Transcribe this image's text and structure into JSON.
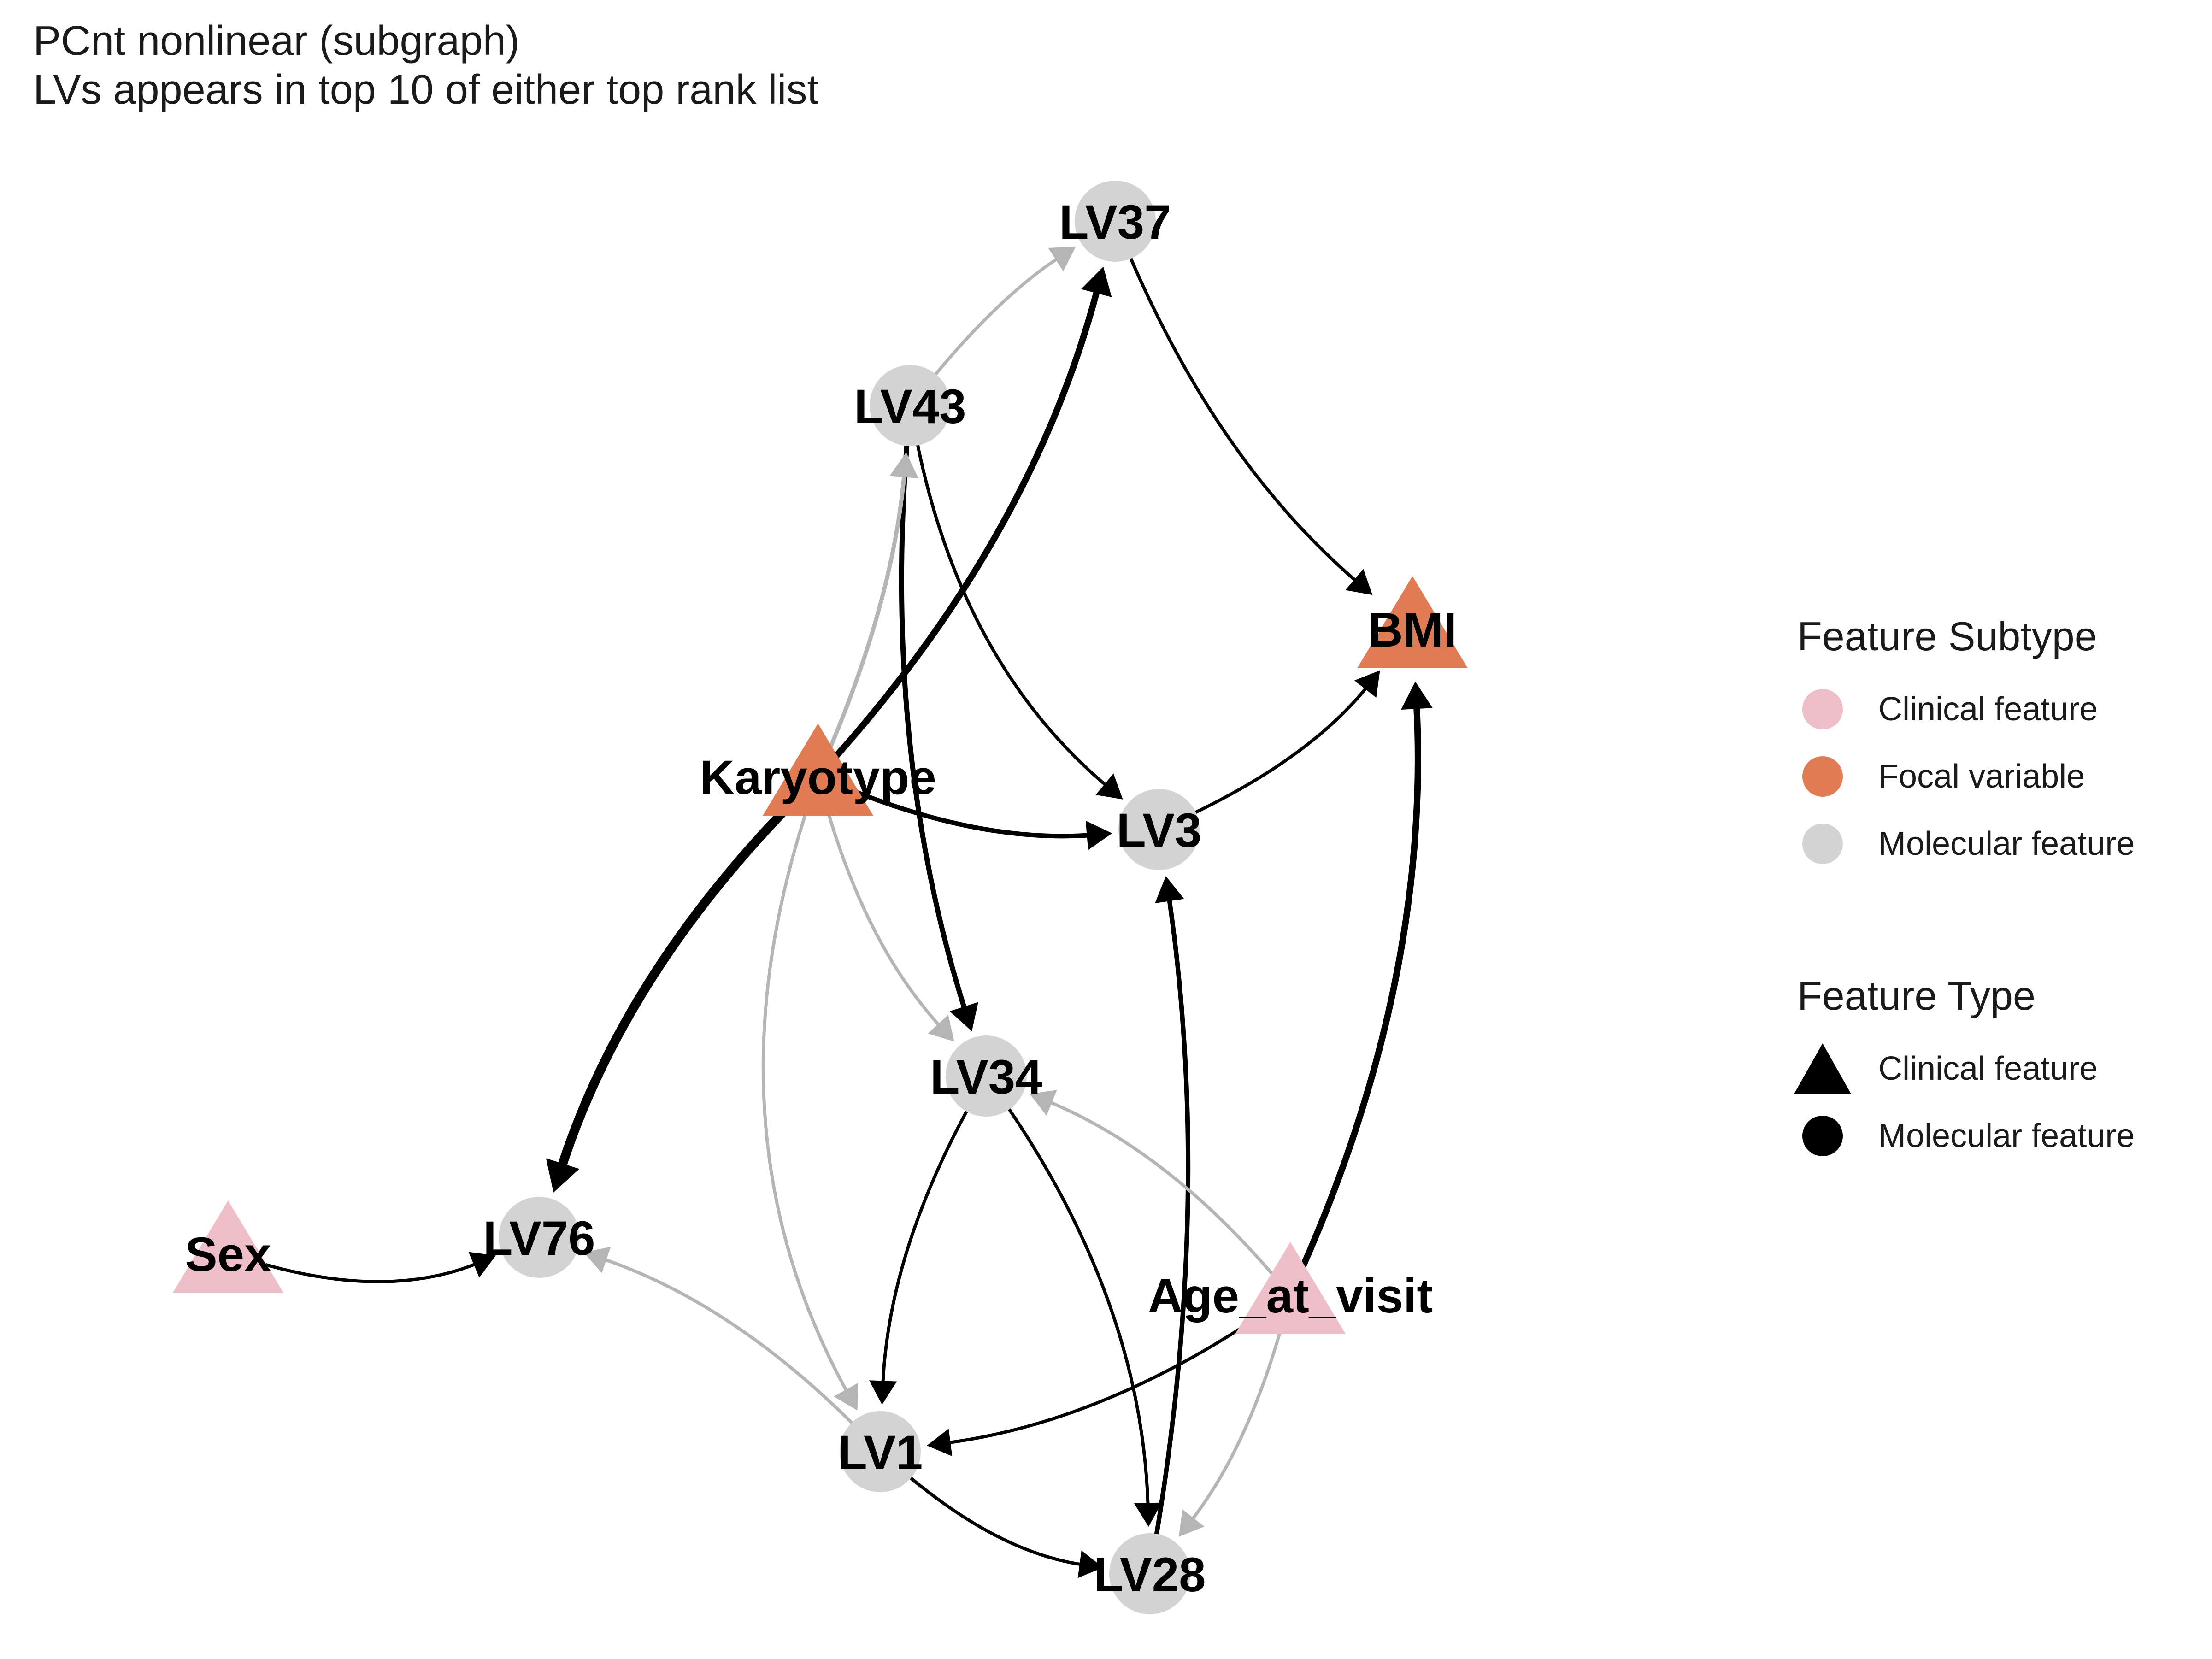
{
  "title": {
    "line1": "PCnt nonlinear (subgraph)",
    "line2": "LVs appears in top 10 of either top rank list"
  },
  "colors": {
    "clinical": "#EEBFC8",
    "focal": "#E07B54",
    "molecular": "#D3D3D3",
    "edge_strong": "#000000",
    "edge_weak": "#B5B5B5"
  },
  "nodes": [
    {
      "id": "LV37",
      "label": "LV37",
      "subtype": "molecular",
      "shape": "circle"
    },
    {
      "id": "LV43",
      "label": "LV43",
      "subtype": "molecular",
      "shape": "circle"
    },
    {
      "id": "BMI",
      "label": "BMI",
      "subtype": "focal",
      "shape": "triangle"
    },
    {
      "id": "Karyotype",
      "label": "Karyotype",
      "subtype": "focal",
      "shape": "triangle"
    },
    {
      "id": "LV3",
      "label": "LV3",
      "subtype": "molecular",
      "shape": "circle"
    },
    {
      "id": "LV34",
      "label": "LV34",
      "subtype": "molecular",
      "shape": "circle"
    },
    {
      "id": "Sex",
      "label": "Sex",
      "subtype": "clinical",
      "shape": "triangle"
    },
    {
      "id": "LV76",
      "label": "LV76",
      "subtype": "molecular",
      "shape": "circle"
    },
    {
      "id": "Age_at_visit",
      "label": "Age_at_visit",
      "subtype": "clinical",
      "shape": "triangle"
    },
    {
      "id": "LV1",
      "label": "LV1",
      "subtype": "molecular",
      "shape": "circle"
    },
    {
      "id": "LV28",
      "label": "LV28",
      "subtype": "molecular",
      "shape": "circle"
    }
  ],
  "edges": [
    {
      "from": "LV43",
      "to": "LV37",
      "style": "weak"
    },
    {
      "from": "Karyotype",
      "to": "LV37",
      "style": "strong"
    },
    {
      "from": "LV37",
      "to": "BMI",
      "style": "strong"
    },
    {
      "from": "LV43",
      "to": "LV3",
      "style": "strong"
    },
    {
      "from": "LV43",
      "to": "LV34",
      "style": "strong"
    },
    {
      "from": "Karyotype",
      "to": "LV43",
      "style": "weak"
    },
    {
      "from": "Karyotype",
      "to": "LV3",
      "style": "strong"
    },
    {
      "from": "Karyotype",
      "to": "LV76",
      "style": "strong"
    },
    {
      "from": "Karyotype",
      "to": "LV34",
      "style": "weak"
    },
    {
      "from": "Karyotype",
      "to": "LV1",
      "style": "weak"
    },
    {
      "from": "LV3",
      "to": "BMI",
      "style": "strong"
    },
    {
      "from": "Age_at_visit",
      "to": "BMI",
      "style": "strong"
    },
    {
      "from": "LV28",
      "to": "LV3",
      "style": "strong"
    },
    {
      "from": "Age_at_visit",
      "to": "LV34",
      "style": "weak"
    },
    {
      "from": "Age_at_visit",
      "to": "LV1",
      "style": "strong"
    },
    {
      "from": "Age_at_visit",
      "to": "LV28",
      "style": "weak"
    },
    {
      "from": "Sex",
      "to": "LV76",
      "style": "strong"
    },
    {
      "from": "LV1",
      "to": "LV76",
      "style": "weak"
    },
    {
      "from": "LV34",
      "to": "LV1",
      "style": "strong"
    },
    {
      "from": "LV34",
      "to": "LV28",
      "style": "strong"
    },
    {
      "from": "LV1",
      "to": "LV28",
      "style": "strong"
    }
  ],
  "legend": {
    "subtype": {
      "title": "Feature Subtype",
      "items": [
        {
          "label": "Clinical feature",
          "color": "#EEBFC8"
        },
        {
          "label": "Focal variable",
          "color": "#E07B54"
        },
        {
          "label": "Molecular feature",
          "color": "#D3D3D3"
        }
      ]
    },
    "type": {
      "title": "Feature Type",
      "items": [
        {
          "label": "Clinical feature",
          "shape": "triangle"
        },
        {
          "label": "Molecular feature",
          "shape": "circle"
        }
      ]
    }
  }
}
